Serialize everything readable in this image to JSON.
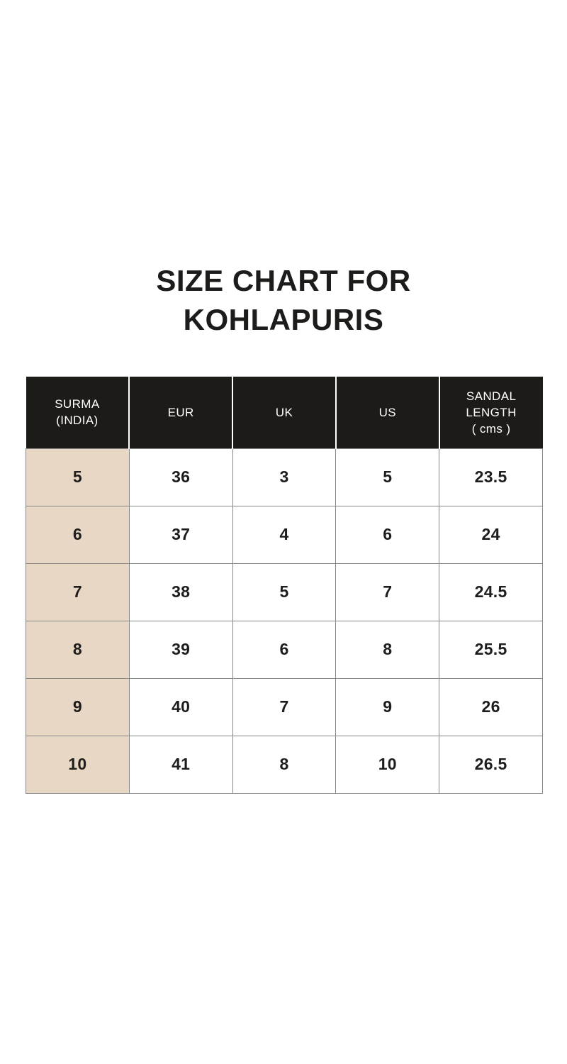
{
  "title": {
    "line1": "SIZE CHART FOR",
    "line2": "KOHLAPURIS"
  },
  "colors": {
    "page_background": "#ffffff",
    "header_background": "#1d1b18",
    "header_text": "#ffffff",
    "first_column_background": "#e8d7c5",
    "cell_background": "#ffffff",
    "border": "#868686",
    "text": "#1e1d1b"
  },
  "table": {
    "columns": [
      {
        "label_lines": [
          "SURMA",
          "(INDIA)"
        ]
      },
      {
        "label_lines": [
          "EUR"
        ]
      },
      {
        "label_lines": [
          "UK"
        ]
      },
      {
        "label_lines": [
          "US"
        ]
      },
      {
        "label_lines": [
          "SANDAL",
          "LENGTH",
          "( cms )"
        ]
      }
    ],
    "rows": [
      [
        "5",
        "36",
        "3",
        "5",
        "23.5"
      ],
      [
        "6",
        "37",
        "4",
        "6",
        "24"
      ],
      [
        "7",
        "38",
        "5",
        "7",
        "24.5"
      ],
      [
        "8",
        "39",
        "6",
        "8",
        "25.5"
      ],
      [
        "9",
        "40",
        "7",
        "9",
        "26"
      ],
      [
        "10",
        "41",
        "8",
        "10",
        "26.5"
      ]
    ]
  },
  "chart_data": {
    "type": "table",
    "title": "SIZE CHART FOR KOHLAPURIS",
    "columns": [
      "SURMA (INDIA)",
      "EUR",
      "UK",
      "US",
      "SANDAL LENGTH ( cms )"
    ],
    "rows": [
      [
        "5",
        "36",
        "3",
        "5",
        "23.5"
      ],
      [
        "6",
        "37",
        "4",
        "6",
        "24"
      ],
      [
        "7",
        "38",
        "5",
        "7",
        "24.5"
      ],
      [
        "8",
        "39",
        "6",
        "8",
        "25.5"
      ],
      [
        "9",
        "40",
        "7",
        "9",
        "26"
      ],
      [
        "10",
        "41",
        "8",
        "10",
        "26.5"
      ]
    ]
  }
}
